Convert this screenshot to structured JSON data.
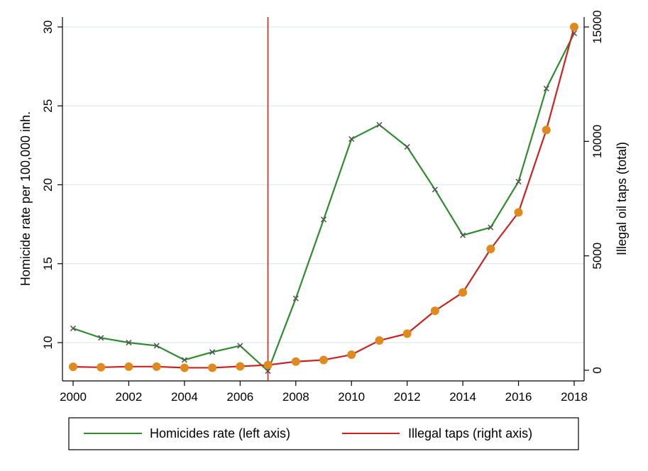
{
  "chart_data": {
    "type": "line",
    "x": [
      2000,
      2001,
      2002,
      2003,
      2004,
      2005,
      2006,
      2007,
      2008,
      2009,
      2010,
      2011,
      2012,
      2013,
      2014,
      2015,
      2016,
      2017,
      2018
    ],
    "xticks": [
      "2000",
      "2002",
      "2004",
      "2006",
      "2008",
      "2010",
      "2012",
      "2014",
      "2016",
      "2018"
    ],
    "xlim": [
      2000,
      2018
    ],
    "y_left": {
      "label": "Homicide rate per 100,000 inh.",
      "ticks": [
        "10",
        "15",
        "20",
        "25",
        "30"
      ],
      "ylim": [
        8.3,
        30
      ]
    },
    "y_right": {
      "label": "Illegal oil taps (total)",
      "ticks": [
        "0",
        "5000",
        "10000",
        "15000"
      ],
      "ylim": [
        0,
        15000
      ]
    },
    "series": [
      {
        "name": "Homicides rate (left axis)",
        "axis": "left",
        "color": "#2e8b2e",
        "marker": "x",
        "values": [
          10.9,
          10.3,
          10.0,
          9.8,
          8.9,
          9.4,
          9.8,
          8.2,
          12.8,
          17.8,
          22.9,
          23.8,
          22.4,
          19.7,
          16.8,
          17.3,
          20.2,
          26.1,
          29.6
        ]
      },
      {
        "name": "Illegal taps (right axis)",
        "axis": "right",
        "color": "#cc2222",
        "marker": "circle",
        "marker_color": "#e08a1e",
        "values": [
          150,
          130,
          160,
          160,
          110,
          110,
          170,
          230,
          380,
          450,
          680,
          1300,
          1600,
          2600,
          3400,
          5300,
          6900,
          10500,
          15000
        ]
      }
    ],
    "annotations": [
      {
        "type": "vertical_line",
        "x": 2007,
        "color": "#cc2222"
      }
    ],
    "grid": true,
    "legend": {
      "position": "bottom",
      "border": true
    }
  }
}
